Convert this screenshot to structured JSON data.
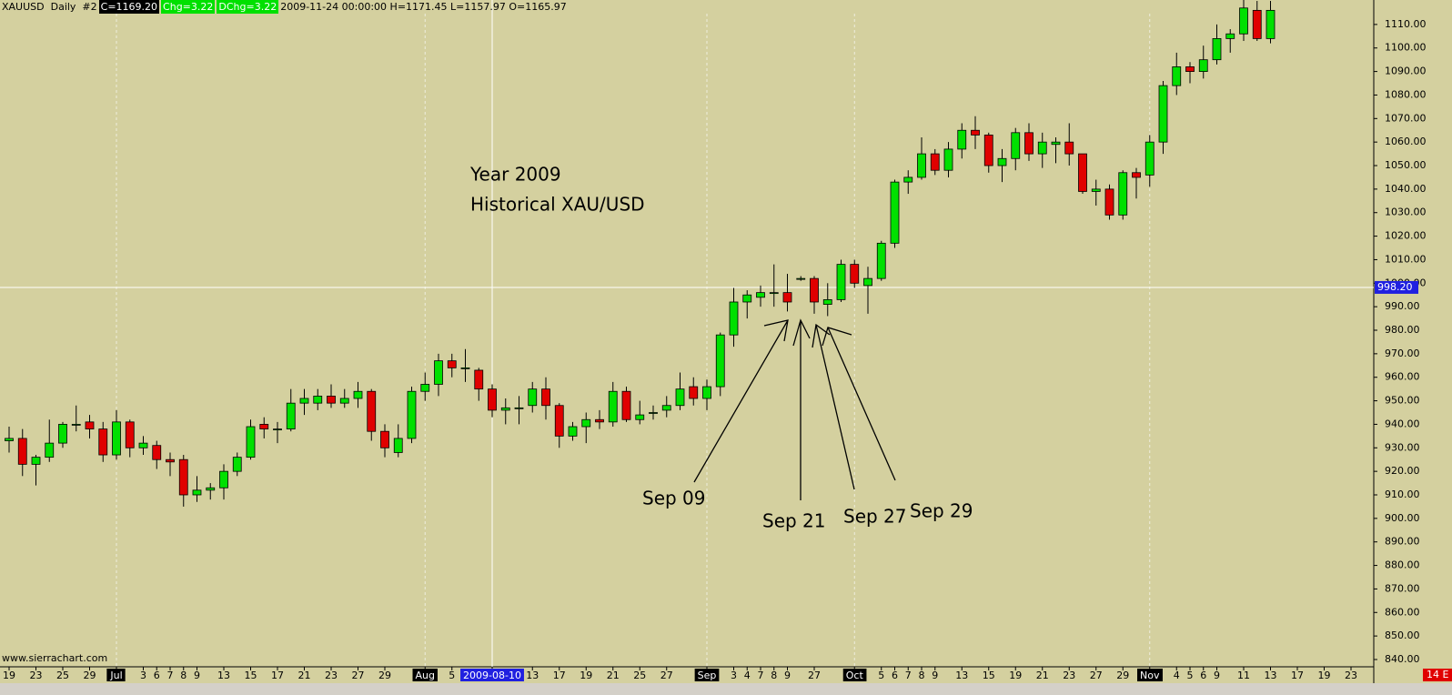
{
  "chart_data": {
    "type": "candlestick",
    "header": {
      "symbol": "XAUUSD  Daily  #2",
      "close": "C=1169.20",
      "change": "Chg=3.22",
      "dchange": "DChg=3.22",
      "info": "2009-11-24 00:00:00 H=1171.45 L=1157.97 O=1165.97"
    },
    "annotations": [
      "Year 2009",
      "Historical XAU/USD",
      "Sep 09",
      "Sep 21",
      "Sep 27",
      "Sep 29"
    ],
    "watermark": "www.sierrachart.com",
    "corner_label": "14 E",
    "up_color": "#00e000",
    "down_color": "#e00000",
    "open": [
      933,
      934,
      923,
      926,
      932,
      940,
      941,
      938,
      927,
      941,
      930,
      931,
      925,
      925,
      910,
      912,
      913,
      920,
      926,
      940,
      938,
      938,
      949,
      949,
      952,
      949,
      951,
      954,
      937,
      928,
      934,
      954,
      957,
      967,
      964,
      963,
      955,
      946,
      947,
      948,
      955,
      948,
      935,
      939,
      942,
      941,
      954,
      942,
      945,
      946,
      948,
      956,
      951,
      956,
      978,
      992,
      994,
      996,
      996,
      1002,
      1002,
      991,
      993,
      1008,
      999,
      1002,
      1017,
      1043,
      1045,
      1055,
      1048,
      1057,
      1065,
      1063,
      1050,
      1053,
      1064,
      1055,
      1059,
      1060,
      1055,
      1039,
      1040,
      1029,
      1047,
      1046,
      1060,
      1084,
      1092,
      1090,
      1095,
      1104,
      1106,
      1116,
      1104
    ],
    "high": [
      939,
      938,
      927,
      942,
      941,
      948,
      944,
      941,
      946,
      942,
      935,
      933,
      928,
      927,
      918,
      915,
      923,
      928,
      942,
      943,
      941,
      955,
      955,
      955,
      957,
      955,
      958,
      955,
      940,
      940,
      956,
      962,
      970,
      970,
      972,
      964,
      957,
      951,
      952,
      958,
      960,
      949,
      941,
      945,
      946,
      958,
      956,
      950,
      948,
      952,
      962,
      960,
      959,
      979,
      998,
      997,
      999,
      1008,
      1004,
      1003,
      1003,
      1000,
      1010,
      1010,
      1007,
      1018,
      1044,
      1048,
      1062,
      1057,
      1060,
      1068,
      1071,
      1064,
      1057,
      1066,
      1068,
      1064,
      1062,
      1068,
      1055,
      1044,
      1042,
      1048,
      1049,
      1063,
      1086,
      1098,
      1094,
      1101,
      1110,
      1108,
      1125,
      1120,
      1120
    ],
    "low": [
      928,
      918,
      914,
      924,
      930,
      937,
      934,
      924,
      925,
      926,
      927,
      921,
      918,
      905,
      907,
      908,
      908,
      918,
      925,
      934,
      932,
      937,
      944,
      946,
      947,
      947,
      947,
      933,
      926,
      926,
      932,
      950,
      952,
      960,
      958,
      950,
      943,
      940,
      940,
      945,
      942,
      930,
      933,
      932,
      938,
      939,
      941,
      940,
      942,
      943,
      946,
      948,
      946,
      952,
      973,
      985,
      990,
      990,
      988,
      1001,
      987,
      986,
      992,
      998,
      987,
      1001,
      1015,
      1038,
      1044,
      1046,
      1045,
      1053,
      1057,
      1047,
      1043,
      1048,
      1052,
      1049,
      1051,
      1050,
      1038,
      1033,
      1027,
      1027,
      1036,
      1041,
      1055,
      1080,
      1085,
      1087,
      1093,
      1098,
      1103,
      1103,
      1102
    ],
    "close": [
      934,
      923,
      926,
      932,
      940,
      940,
      938,
      927,
      941,
      930,
      932,
      925,
      924,
      910,
      912,
      913,
      920,
      926,
      939,
      938,
      938,
      949,
      951,
      952,
      949,
      951,
      954,
      937,
      930,
      934,
      954,
      957,
      967,
      964,
      964,
      955,
      946,
      947,
      947,
      955,
      948,
      935,
      939,
      942,
      941,
      954,
      942,
      944,
      945,
      948,
      955,
      951,
      956,
      978,
      992,
      995,
      996,
      996,
      992,
      1002,
      992,
      993,
      1008,
      1000,
      1002,
      1017,
      1043,
      1045,
      1055,
      1048,
      1057,
      1065,
      1063,
      1050,
      1053,
      1064,
      1055,
      1060,
      1060,
      1055,
      1039,
      1040,
      1029,
      1047,
      1045,
      1060,
      1084,
      1092,
      1090,
      1095,
      1104,
      1106,
      1117,
      1104,
      1116
    ],
    "ylim": [
      836.9,
      1120.4
    ],
    "yticks": [
      {
        "value": 840,
        "label": "840.00"
      },
      {
        "value": 850,
        "label": "850.00"
      },
      {
        "value": 860,
        "label": "860.00"
      },
      {
        "value": 870,
        "label": "870.00"
      },
      {
        "value": 880,
        "label": "880.00"
      },
      {
        "value": 890,
        "label": "890.00"
      },
      {
        "value": 900,
        "label": "900.00"
      },
      {
        "value": 910,
        "label": "910.00"
      },
      {
        "value": 920,
        "label": "920.00"
      },
      {
        "value": 930,
        "label": "930.00"
      },
      {
        "value": 940,
        "label": "940.00"
      },
      {
        "value": 950,
        "label": "950.00"
      },
      {
        "value": 960,
        "label": "960.00"
      },
      {
        "value": 970,
        "label": "970.00"
      },
      {
        "value": 980,
        "label": "980.00"
      },
      {
        "value": 990,
        "label": "990.00"
      },
      {
        "value": 1000,
        "label": "1000.00"
      },
      {
        "value": 1010,
        "label": "1010.00"
      },
      {
        "value": 1020,
        "label": "1020.00"
      },
      {
        "value": 1030,
        "label": "1030.00"
      },
      {
        "value": 1040,
        "label": "1040.00"
      },
      {
        "value": 1050,
        "label": "1050.00"
      },
      {
        "value": 1060,
        "label": "1060.00"
      },
      {
        "value": 1070,
        "label": "1070.00"
      },
      {
        "value": 1080,
        "label": "1080.00"
      },
      {
        "value": 1090,
        "label": "1090.00"
      },
      {
        "value": 1100,
        "label": "1100.00"
      },
      {
        "value": 1110,
        "label": "1110.00"
      }
    ],
    "xticks": [
      {
        "value": 0,
        "label": "19"
      },
      {
        "value": 2,
        "label": "23"
      },
      {
        "value": 4,
        "label": "25"
      },
      {
        "value": 6,
        "label": "29"
      },
      {
        "value": 8,
        "label": "Jul"
      },
      {
        "value": 10,
        "label": "3"
      },
      {
        "value": 11,
        "label": "6"
      },
      {
        "value": 12,
        "label": "7"
      },
      {
        "value": 13,
        "label": "8"
      },
      {
        "value": 14,
        "label": "9"
      },
      {
        "value": 16,
        "label": "13"
      },
      {
        "value": 18,
        "label": "15"
      },
      {
        "value": 20,
        "label": "17"
      },
      {
        "value": 22,
        "label": "21"
      },
      {
        "value": 24,
        "label": "23"
      },
      {
        "value": 26,
        "label": "27"
      },
      {
        "value": 28,
        "label": "29"
      },
      {
        "value": 31,
        "label": "Aug"
      },
      {
        "value": 33,
        "label": "5"
      },
      {
        "value": 36,
        "label": "2009-08-10"
      },
      {
        "value": 39,
        "label": "13"
      },
      {
        "value": 41,
        "label": "17"
      },
      {
        "value": 43,
        "label": "19"
      },
      {
        "value": 45,
        "label": "21"
      },
      {
        "value": 47,
        "label": "25"
      },
      {
        "value": 49,
        "label": "27"
      },
      {
        "value": 52,
        "label": "Sep"
      },
      {
        "value": 54,
        "label": "3"
      },
      {
        "value": 55,
        "label": "4"
      },
      {
        "value": 56,
        "label": "7"
      },
      {
        "value": 57,
        "label": "8"
      },
      {
        "value": 58,
        "label": "9"
      },
      {
        "value": 60,
        "label": "27"
      },
      {
        "value": 63,
        "label": "Oct"
      },
      {
        "value": 65,
        "label": "5"
      },
      {
        "value": 66,
        "label": "6"
      },
      {
        "value": 67,
        "label": "7"
      },
      {
        "value": 68,
        "label": "8"
      },
      {
        "value": 69,
        "label": "9"
      },
      {
        "value": 71,
        "label": "13"
      },
      {
        "value": 73,
        "label": "15"
      },
      {
        "value": 75,
        "label": "19"
      },
      {
        "value": 77,
        "label": "21"
      },
      {
        "value": 79,
        "label": "23"
      },
      {
        "value": 81,
        "label": "27"
      },
      {
        "value": 83,
        "label": "29"
      },
      {
        "value": 85,
        "label": "Nov"
      },
      {
        "value": 87,
        "label": "4"
      },
      {
        "value": 88,
        "label": "5"
      },
      {
        "value": 89,
        "label": "6"
      },
      {
        "value": 90,
        "label": "9"
      },
      {
        "value": 92,
        "label": "11"
      },
      {
        "value": 94,
        "label": "13"
      },
      {
        "value": 96,
        "label": "17"
      },
      {
        "value": 98,
        "label": "19"
      },
      {
        "value": 100,
        "label": "23"
      }
    ],
    "month_ticks": [
      4,
      17,
      26,
      33,
      46
    ],
    "crosshair_xtick": 19,
    "crosshair_price": {
      "value": 998.2,
      "label": "998.20"
    }
  }
}
